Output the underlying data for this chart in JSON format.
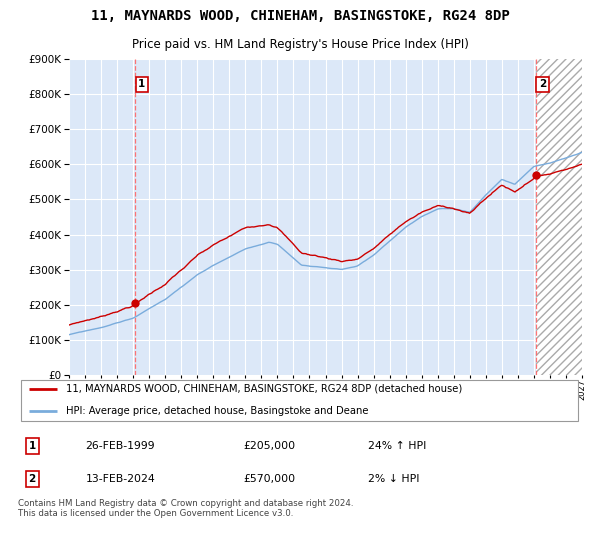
{
  "title": "11, MAYNARDS WOOD, CHINEHAM, BASINGSTOKE, RG24 8DP",
  "subtitle": "Price paid vs. HM Land Registry's House Price Index (HPI)",
  "legend_label_red": "11, MAYNARDS WOOD, CHINEHAM, BASINGSTOKE, RG24 8DP (detached house)",
  "legend_label_blue": "HPI: Average price, detached house, Basingstoke and Deane",
  "sale1_date": "26-FEB-1999",
  "sale1_price": "£205,000",
  "sale1_hpi": "24% ↑ HPI",
  "sale2_date": "13-FEB-2024",
  "sale2_price": "£570,000",
  "sale2_hpi": "2% ↓ HPI",
  "footnote": "Contains HM Land Registry data © Crown copyright and database right 2024.\nThis data is licensed under the Open Government Licence v3.0.",
  "ylim": [
    0,
    900000
  ],
  "yticks": [
    0,
    100000,
    200000,
    300000,
    400000,
    500000,
    600000,
    700000,
    800000,
    900000
  ],
  "background_color": "#ffffff",
  "plot_bg_color": "#dce8f8",
  "grid_color": "#ffffff",
  "red_color": "#cc0000",
  "blue_color": "#7aacdc",
  "sale1_year": 1999.12,
  "sale2_year": 2024.12,
  "sale1_price_val": 205000,
  "sale2_price_val": 570000,
  "xmin": 1995,
  "xmax": 2027
}
